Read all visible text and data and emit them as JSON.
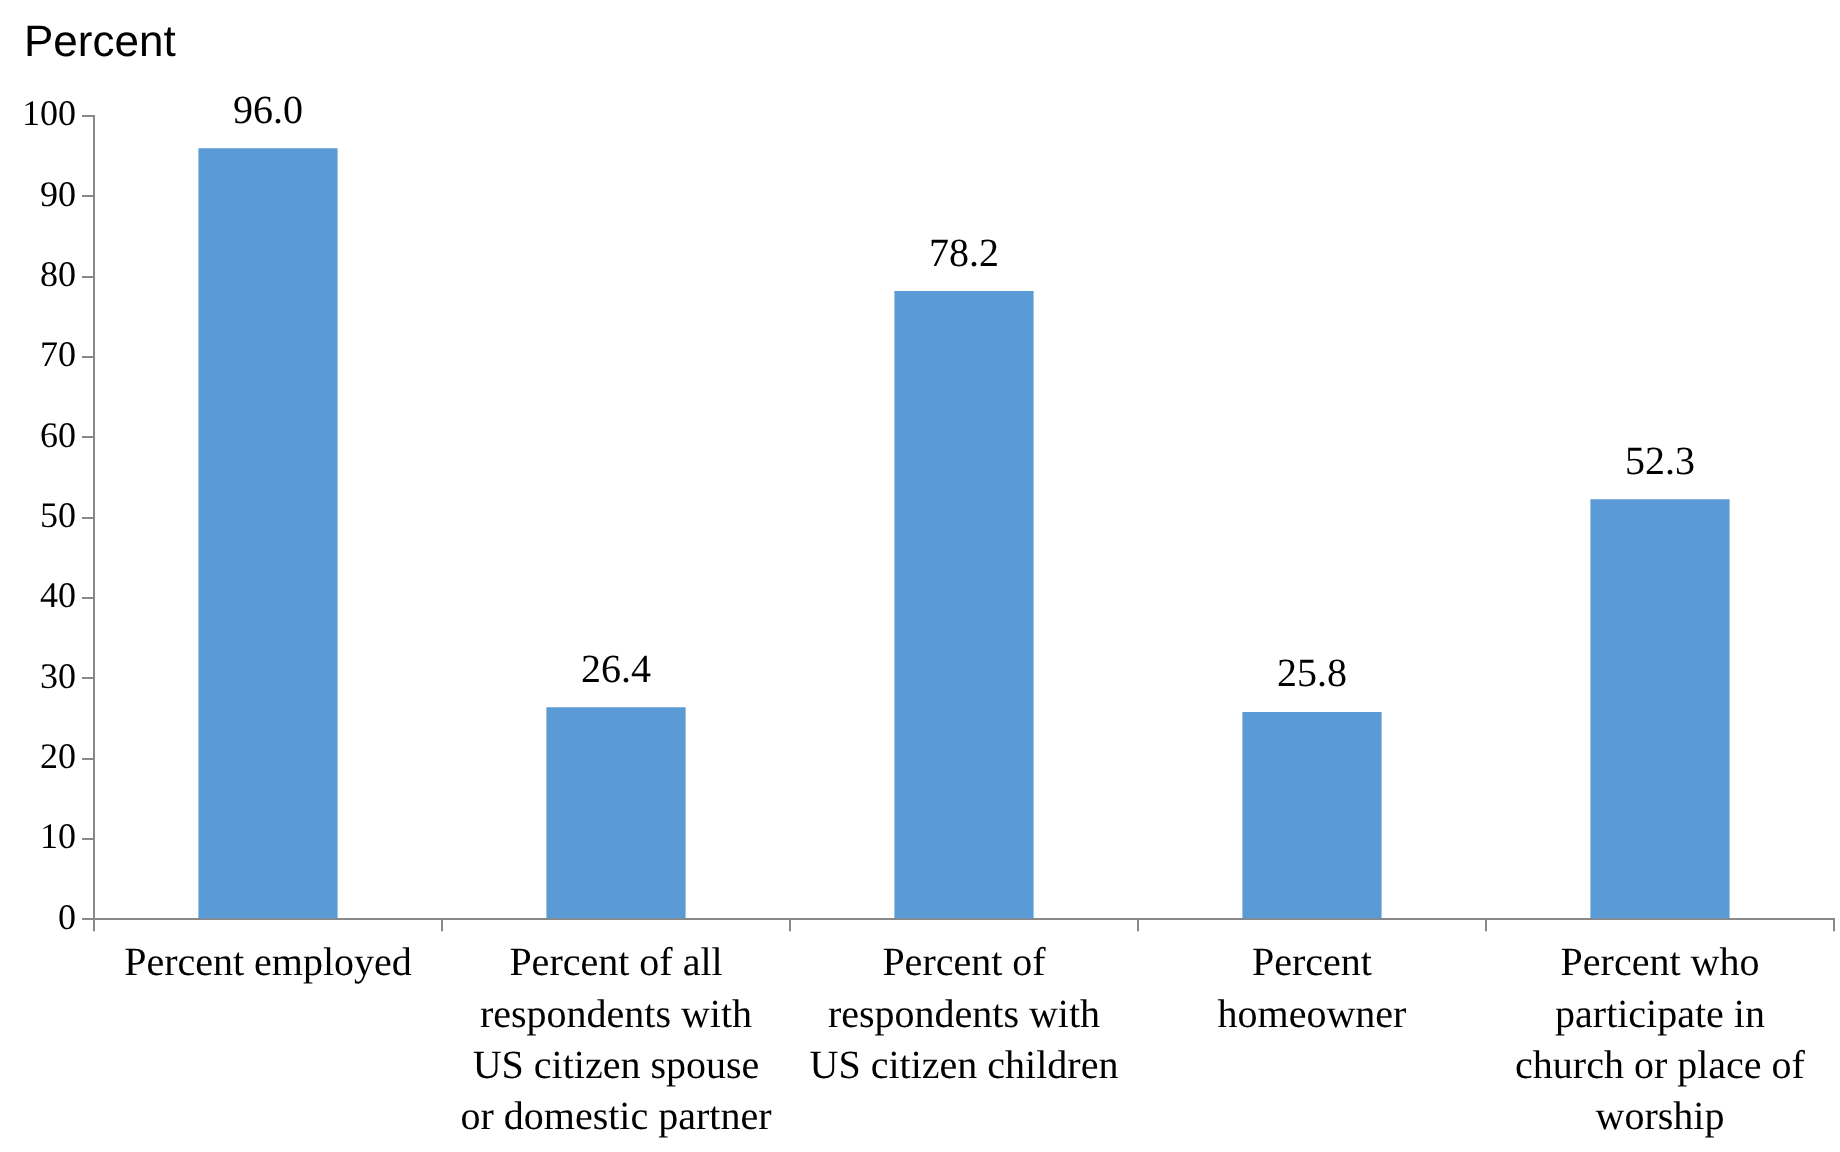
{
  "chart_data": {
    "type": "bar",
    "ylabel": "Percent",
    "categories": [
      "Percent employed",
      "Percent of all respondents with US citizen spouse or domestic partner",
      "Percent of respondents with US citizen children",
      "Percent homeowner",
      "Percent who participate in church or place of worship"
    ],
    "values": [
      96.0,
      26.4,
      78.2,
      25.8,
      52.3
    ],
    "color": "#5b9bd5",
    "value_labels": [
      "96.0",
      "26.4",
      "78.2",
      "25.8",
      "52.3"
    ],
    "ylim": [
      0,
      100
    ],
    "yticks": [
      0,
      10,
      20,
      30,
      40,
      50,
      60,
      70,
      80,
      90,
      100
    ],
    "grid": false,
    "legend": false
  }
}
